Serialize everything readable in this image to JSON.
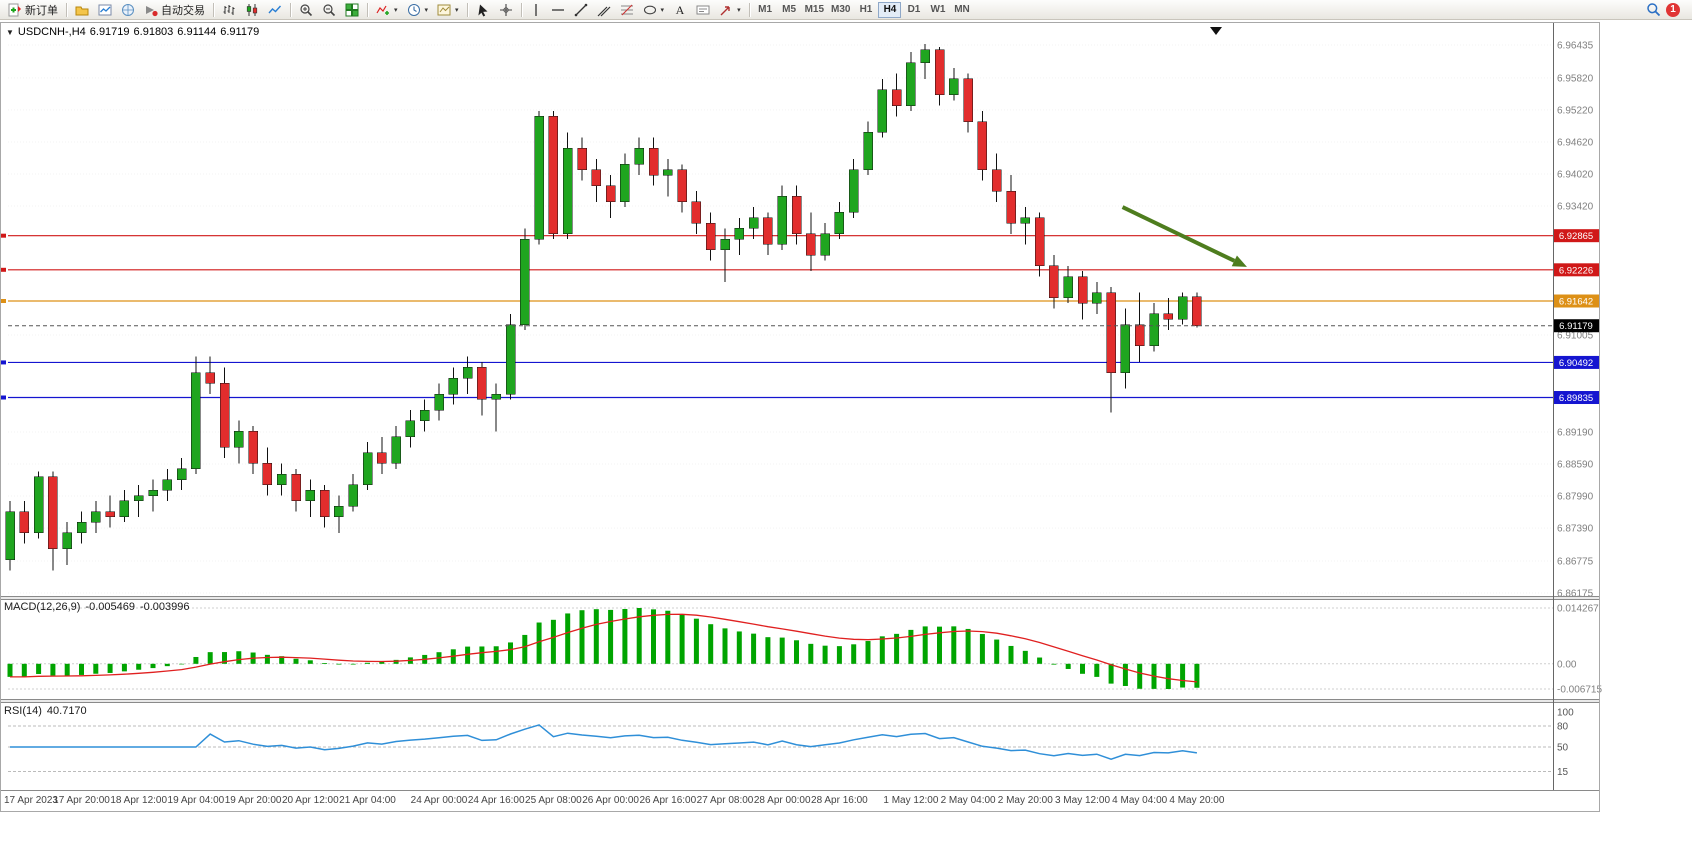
{
  "toolbar": {
    "new_order": "新订单",
    "auto_trading": "自动交易",
    "timeframes": [
      "M1",
      "M5",
      "M15",
      "M30",
      "H1",
      "H4",
      "D1",
      "W1",
      "MN"
    ],
    "active_timeframe": "H4",
    "notification_count": "1"
  },
  "chart": {
    "symbol_period": "USDCNH-,H4",
    "open": "6.91719",
    "high": "6.91803",
    "low": "6.91144",
    "close": "6.91179"
  },
  "macd": {
    "name": "MACD(12,26,9)",
    "main": "-0.005469",
    "signal": "-0.003996",
    "axis_max": "0.014267",
    "axis_zero": "0.00",
    "axis_min": "-0.006715"
  },
  "rsi": {
    "name": "RSI(14)",
    "value": "40.7170"
  },
  "chart_data": [
    {
      "type": "candlestick",
      "symbol": "USDCNH-",
      "period": "H4",
      "ohlc_current": {
        "open": 6.91719,
        "high": 6.91803,
        "low": 6.91144,
        "close": 6.91179
      },
      "bull_color": "#1fa51f",
      "bear_color": "#e22d2d",
      "wick_color": "#111111",
      "price_axis": {
        "min": 6.86175,
        "max": 6.96435,
        "tick_labels": [
          {
            "text": "6.96435",
            "price": 6.96435
          },
          {
            "text": "6.95820",
            "price": 6.9582
          },
          {
            "text": "6.95220",
            "price": 6.9522
          },
          {
            "text": "6.94620",
            "price": 6.9462
          },
          {
            "text": "6.94020",
            "price": 6.9402
          },
          {
            "text": "6.93420",
            "price": 6.9342
          },
          {
            "text": "6.91005",
            "price": 6.91005
          },
          {
            "text": "6.89190",
            "price": 6.8919
          },
          {
            "text": "6.88590",
            "price": 6.8859
          },
          {
            "text": "6.87990",
            "price": 6.8799
          },
          {
            "text": "6.87390",
            "price": 6.8739
          },
          {
            "text": "6.86775",
            "price": 6.86775
          },
          {
            "text": "6.86175",
            "price": 6.86175
          }
        ]
      },
      "levels": [
        {
          "price": 6.92865,
          "label": "6.92865",
          "color": "#d01818"
        },
        {
          "price": 6.92226,
          "label": "6.92226",
          "color": "#d01818"
        },
        {
          "price": 6.91642,
          "label": "6.91642",
          "color": "#dd9016"
        },
        {
          "price": 6.90492,
          "label": "6.90492",
          "color": "#1515d0"
        },
        {
          "price": 6.89835,
          "label": "6.89835",
          "color": "#1515d0"
        }
      ],
      "current_price": {
        "price": 6.91179,
        "label": "6.91179",
        "color": "#000000"
      },
      "annotation_arrow": {
        "from_index": 77.8,
        "from_price": 6.934,
        "to_index": 86.5,
        "to_price": 6.9228,
        "color": "#4e7d1e"
      },
      "x_labels": [
        "17 Apr 2023",
        "17 Apr 20:00",
        "18 Apr 12:00",
        "19 Apr 04:00",
        "19 Apr 20:00",
        "20 Apr 12:00",
        "21 Apr 04:00",
        "24 Apr 00:00",
        "24 Apr 16:00",
        "25 Apr 08:00",
        "26 Apr 00:00",
        "26 Apr 16:00",
        "27 Apr 08:00",
        "28 Apr 00:00",
        "28 Apr 16:00",
        "1 May 12:00",
        "2 May 04:00",
        "2 May 20:00",
        "3 May 12:00",
        "4 May 04:00",
        "4 May 20:00"
      ],
      "x_label_indices": [
        0,
        5,
        9,
        13,
        17,
        21,
        25,
        30,
        34,
        38,
        42,
        46,
        50,
        54,
        58,
        63,
        67,
        71,
        75,
        79,
        83
      ],
      "candles": [
        [
          6.868,
          6.879,
          6.866,
          6.877
        ],
        [
          6.877,
          6.879,
          6.871,
          6.873
        ],
        [
          6.873,
          6.8845,
          6.872,
          6.8835
        ],
        [
          6.8835,
          6.8845,
          6.866,
          6.87
        ],
        [
          6.87,
          6.875,
          6.867,
          6.873
        ],
        [
          6.873,
          6.877,
          6.871,
          6.875
        ],
        [
          6.875,
          6.879,
          6.873,
          6.877
        ],
        [
          6.877,
          6.88,
          6.874,
          6.876
        ],
        [
          6.876,
          6.881,
          6.875,
          6.879
        ],
        [
          6.879,
          6.882,
          6.876,
          6.88
        ],
        [
          6.88,
          6.883,
          6.877,
          6.881
        ],
        [
          6.881,
          6.885,
          6.879,
          6.883
        ],
        [
          6.883,
          6.887,
          6.881,
          6.885
        ],
        [
          6.885,
          6.906,
          6.884,
          6.903
        ],
        [
          6.903,
          6.906,
          6.899,
          6.901
        ],
        [
          6.901,
          6.904,
          6.887,
          6.889
        ],
        [
          6.889,
          6.894,
          6.886,
          6.892
        ],
        [
          6.892,
          6.893,
          6.884,
          6.886
        ],
        [
          6.886,
          6.889,
          6.88,
          6.882
        ],
        [
          6.882,
          6.886,
          6.88,
          6.884
        ],
        [
          6.884,
          6.885,
          6.877,
          6.879
        ],
        [
          6.879,
          6.883,
          6.876,
          6.881
        ],
        [
          6.881,
          6.882,
          6.874,
          6.876
        ],
        [
          6.876,
          6.88,
          6.873,
          6.878
        ],
        [
          6.878,
          6.884,
          6.877,
          6.882
        ],
        [
          6.882,
          6.89,
          6.881,
          6.888
        ],
        [
          6.888,
          6.891,
          6.884,
          6.886
        ],
        [
          6.886,
          6.893,
          6.885,
          6.891
        ],
        [
          6.891,
          6.896,
          6.889,
          6.894
        ],
        [
          6.894,
          6.898,
          6.892,
          6.896
        ],
        [
          6.896,
          6.901,
          6.894,
          6.899
        ],
        [
          6.899,
          6.904,
          6.897,
          6.902
        ],
        [
          6.902,
          6.906,
          6.899,
          6.904
        ],
        [
          6.904,
          6.905,
          6.895,
          6.898
        ],
        [
          6.898,
          6.901,
          6.892,
          6.899
        ],
        [
          6.899,
          6.914,
          6.898,
          6.912
        ],
        [
          6.912,
          6.93,
          6.911,
          6.928
        ],
        [
          6.928,
          6.952,
          6.927,
          6.951
        ],
        [
          6.951,
          6.952,
          6.928,
          6.929
        ],
        [
          6.929,
          6.948,
          6.928,
          6.945
        ],
        [
          6.945,
          6.947,
          6.939,
          6.941
        ],
        [
          6.941,
          6.943,
          6.935,
          6.938
        ],
        [
          6.938,
          6.94,
          6.932,
          6.935
        ],
        [
          6.935,
          6.944,
          6.934,
          6.942
        ],
        [
          6.942,
          6.947,
          6.94,
          6.945
        ],
        [
          6.945,
          6.947,
          6.938,
          6.94
        ],
        [
          6.94,
          6.943,
          6.936,
          6.941
        ],
        [
          6.941,
          6.942,
          6.933,
          6.935
        ],
        [
          6.935,
          6.937,
          6.929,
          6.931
        ],
        [
          6.931,
          6.933,
          6.924,
          6.926
        ],
        [
          6.926,
          6.93,
          6.92,
          6.928
        ],
        [
          6.928,
          6.932,
          6.925,
          6.93
        ],
        [
          6.93,
          6.934,
          6.928,
          6.932
        ],
        [
          6.932,
          6.933,
          6.925,
          6.927
        ],
        [
          6.927,
          6.938,
          6.926,
          6.936
        ],
        [
          6.936,
          6.938,
          6.927,
          6.929
        ],
        [
          6.929,
          6.933,
          6.922,
          6.925
        ],
        [
          6.925,
          6.931,
          6.924,
          6.929
        ],
        [
          6.929,
          6.935,
          6.928,
          6.933
        ],
        [
          6.933,
          6.943,
          6.932,
          6.941
        ],
        [
          6.941,
          6.95,
          6.94,
          6.948
        ],
        [
          6.948,
          6.958,
          6.947,
          6.956
        ],
        [
          6.956,
          6.959,
          6.951,
          6.953
        ],
        [
          6.953,
          6.963,
          6.952,
          6.961
        ],
        [
          6.961,
          6.9645,
          6.958,
          6.9635
        ],
        [
          6.9635,
          6.964,
          6.953,
          6.955
        ],
        [
          6.955,
          6.96,
          6.954,
          6.958
        ],
        [
          6.958,
          6.959,
          6.948,
          6.95
        ],
        [
          6.95,
          6.952,
          6.939,
          6.941
        ],
        [
          6.941,
          6.944,
          6.935,
          6.937
        ],
        [
          6.937,
          6.94,
          6.929,
          6.931
        ],
        [
          6.931,
          6.934,
          6.927,
          6.932
        ],
        [
          6.932,
          6.933,
          6.921,
          6.923
        ],
        [
          6.923,
          6.925,
          6.915,
          6.917
        ],
        [
          6.917,
          6.923,
          6.916,
          6.921
        ],
        [
          6.921,
          6.922,
          6.913,
          6.916
        ],
        [
          6.916,
          6.92,
          6.914,
          6.918
        ],
        [
          6.918,
          6.919,
          6.8955,
          6.903
        ],
        [
          6.903,
          6.915,
          6.9,
          6.912
        ],
        [
          6.912,
          6.918,
          6.905,
          6.908
        ],
        [
          6.908,
          6.916,
          6.907,
          6.914
        ],
        [
          6.914,
          6.917,
          6.911,
          6.913
        ],
        [
          6.913,
          6.918,
          6.912,
          6.9172
        ],
        [
          6.91719,
          6.91803,
          6.91144,
          6.91179
        ]
      ]
    },
    {
      "type": "macd",
      "label": "MACD(12,26,9)",
      "values_display": {
        "main": "-0.005469",
        "signal": "-0.003996"
      },
      "axis_labels": {
        "max": "0.014267",
        "zero": "0.00",
        "min": "-0.006715"
      },
      "histogram_color": "#00a400",
      "signal_color": "#e02020",
      "params": [
        12,
        26,
        9
      ],
      "derived_from": "candle closes"
    },
    {
      "type": "rsi",
      "label": "RSI(14)",
      "value_display": "40.7170",
      "period": 14,
      "levels": [
        100,
        80,
        50,
        15
      ],
      "line_color": "#2f8fd8",
      "derived_from": "candle closes"
    }
  ]
}
